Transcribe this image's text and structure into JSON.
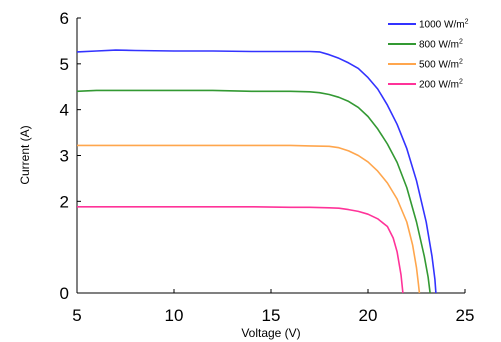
{
  "chart_data": {
    "type": "line",
    "title": "",
    "xlabel": "Voltage (V)",
    "ylabel": "Current (A)",
    "xlim": [
      5,
      25
    ],
    "ylim": [
      0,
      6
    ],
    "x_ticks": [
      "5",
      "10",
      "15",
      "20",
      "25"
    ],
    "y_ticks": [
      "0",
      "2",
      "3",
      "4",
      "5",
      "6"
    ],
    "legend_position": "top-right",
    "grid": false,
    "series": [
      {
        "name": "1000 W/m",
        "name_sup": "2",
        "color": "#3333ff",
        "points": [
          [
            5,
            5.26
          ],
          [
            6,
            5.28
          ],
          [
            7,
            5.3
          ],
          [
            8,
            5.29
          ],
          [
            10,
            5.28
          ],
          [
            12,
            5.28
          ],
          [
            14,
            5.27
          ],
          [
            16,
            5.27
          ],
          [
            17,
            5.27
          ],
          [
            17.5,
            5.26
          ],
          [
            18,
            5.2
          ],
          [
            18.5,
            5.12
          ],
          [
            19,
            5.02
          ],
          [
            19.5,
            4.9
          ],
          [
            20,
            4.7
          ],
          [
            20.5,
            4.45
          ],
          [
            21,
            4.1
          ],
          [
            21.5,
            3.68
          ],
          [
            22,
            3.15
          ],
          [
            22.5,
            2.45
          ],
          [
            23,
            1.55
          ],
          [
            23.3,
            0.8
          ],
          [
            23.45,
            0.3
          ],
          [
            23.5,
            0
          ]
        ]
      },
      {
        "name": "800 W/m",
        "name_sup": "2",
        "color": "#339933",
        "points": [
          [
            5,
            4.4
          ],
          [
            6,
            4.42
          ],
          [
            8,
            4.42
          ],
          [
            10,
            4.42
          ],
          [
            12,
            4.42
          ],
          [
            14,
            4.4
          ],
          [
            16,
            4.4
          ],
          [
            17,
            4.39
          ],
          [
            17.5,
            4.37
          ],
          [
            18,
            4.33
          ],
          [
            18.5,
            4.27
          ],
          [
            19,
            4.18
          ],
          [
            19.5,
            4.05
          ],
          [
            20,
            3.85
          ],
          [
            20.5,
            3.58
          ],
          [
            21,
            3.25
          ],
          [
            21.5,
            2.85
          ],
          [
            22,
            2.3
          ],
          [
            22.5,
            1.55
          ],
          [
            22.9,
            0.8
          ],
          [
            23.1,
            0.35
          ],
          [
            23.2,
            0
          ]
        ]
      },
      {
        "name": "500 W/m",
        "name_sup": "2",
        "color": "#ffa64d",
        "points": [
          [
            5,
            3.22
          ],
          [
            6,
            3.22
          ],
          [
            8,
            3.22
          ],
          [
            10,
            3.22
          ],
          [
            12,
            3.22
          ],
          [
            14,
            3.22
          ],
          [
            16,
            3.22
          ],
          [
            17,
            3.21
          ],
          [
            18,
            3.2
          ],
          [
            18.5,
            3.17
          ],
          [
            19,
            3.1
          ],
          [
            19.5,
            3.0
          ],
          [
            20,
            2.86
          ],
          [
            20.5,
            2.66
          ],
          [
            21,
            2.4
          ],
          [
            21.5,
            2.05
          ],
          [
            22,
            1.55
          ],
          [
            22.3,
            1.05
          ],
          [
            22.5,
            0.55
          ],
          [
            22.6,
            0.2
          ],
          [
            22.65,
            0
          ]
        ]
      },
      {
        "name": "200 W/m",
        "name_sup": "2",
        "color": "#ff3399",
        "points": [
          [
            5,
            1.88
          ],
          [
            6,
            1.88
          ],
          [
            8,
            1.88
          ],
          [
            10,
            1.88
          ],
          [
            12,
            1.88
          ],
          [
            14,
            1.88
          ],
          [
            16,
            1.87
          ],
          [
            17,
            1.87
          ],
          [
            18,
            1.86
          ],
          [
            18.5,
            1.85
          ],
          [
            19,
            1.82
          ],
          [
            19.5,
            1.78
          ],
          [
            20,
            1.72
          ],
          [
            20.5,
            1.62
          ],
          [
            21,
            1.45
          ],
          [
            21.3,
            1.2
          ],
          [
            21.5,
            0.9
          ],
          [
            21.7,
            0.4
          ],
          [
            21.8,
            0
          ]
        ]
      }
    ]
  }
}
